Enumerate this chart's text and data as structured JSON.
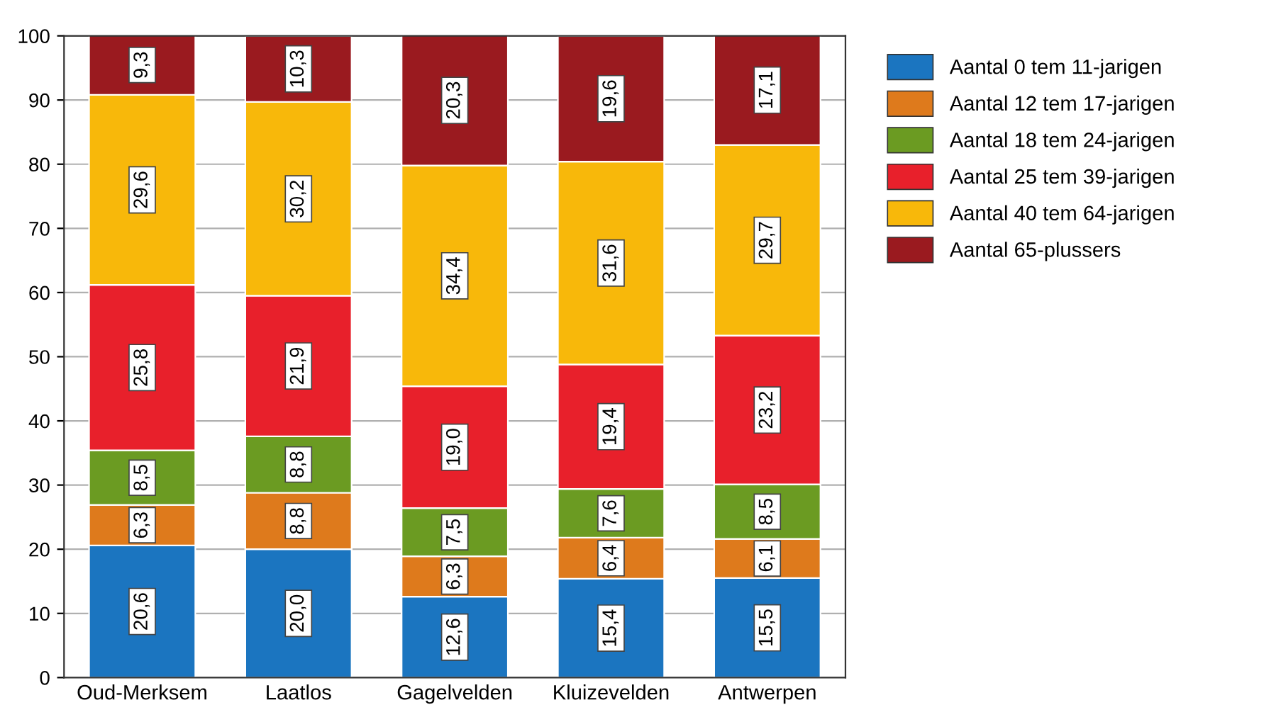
{
  "chart_data": {
    "type": "bar",
    "stacked": true,
    "categories": [
      "Oud-Merksem",
      "Laatlos",
      "Gagelvelden",
      "Kluizevelden",
      "Antwerpen"
    ],
    "series": [
      {
        "name": "Aantal 0 tem 11-jarigen",
        "color": "#1b75c0",
        "values": [
          20.6,
          20.0,
          12.6,
          15.4,
          15.5
        ],
        "value_labels": [
          "20,6",
          "20,0",
          "12,6",
          "15,4",
          "15,5"
        ]
      },
      {
        "name": "Aantal 12 tem 17-jarigen",
        "color": "#de7a1c",
        "values": [
          6.3,
          8.8,
          6.3,
          6.4,
          6.1
        ],
        "value_labels": [
          "6,3",
          "8,8",
          "6,3",
          "6,4",
          "6,1"
        ]
      },
      {
        "name": "Aantal 18 tem 24-jarigen",
        "color": "#6b9b22",
        "values": [
          8.5,
          8.8,
          7.5,
          7.6,
          8.5
        ],
        "value_labels": [
          "8,5",
          "8,8",
          "7,5",
          "7,6",
          "8,5"
        ]
      },
      {
        "name": "Aantal 25 tem 39-jarigen",
        "color": "#e8202b",
        "values": [
          25.8,
          21.9,
          19.0,
          19.4,
          23.2
        ],
        "value_labels": [
          "25,8",
          "21,9",
          "19,0",
          "19,4",
          "23,2"
        ]
      },
      {
        "name": "Aantal 40 tem 64-jarigen",
        "color": "#f8b80a",
        "values": [
          29.6,
          30.2,
          34.4,
          31.6,
          29.7
        ],
        "value_labels": [
          "29,6",
          "30,2",
          "34,4",
          "31,6",
          "29,7"
        ]
      },
      {
        "name": "Aantal 65-plussers",
        "color": "#9a1a1f",
        "values": [
          9.3,
          10.3,
          20.3,
          19.6,
          17.1
        ],
        "value_labels": [
          "9,3",
          "10,3",
          "20,3",
          "19,6",
          "17,1"
        ]
      }
    ],
    "ylim": [
      0,
      100
    ],
    "yticks": [
      0,
      10,
      20,
      30,
      40,
      50,
      60,
      70,
      80,
      90,
      100
    ],
    "grid": "y",
    "legend": "right"
  }
}
